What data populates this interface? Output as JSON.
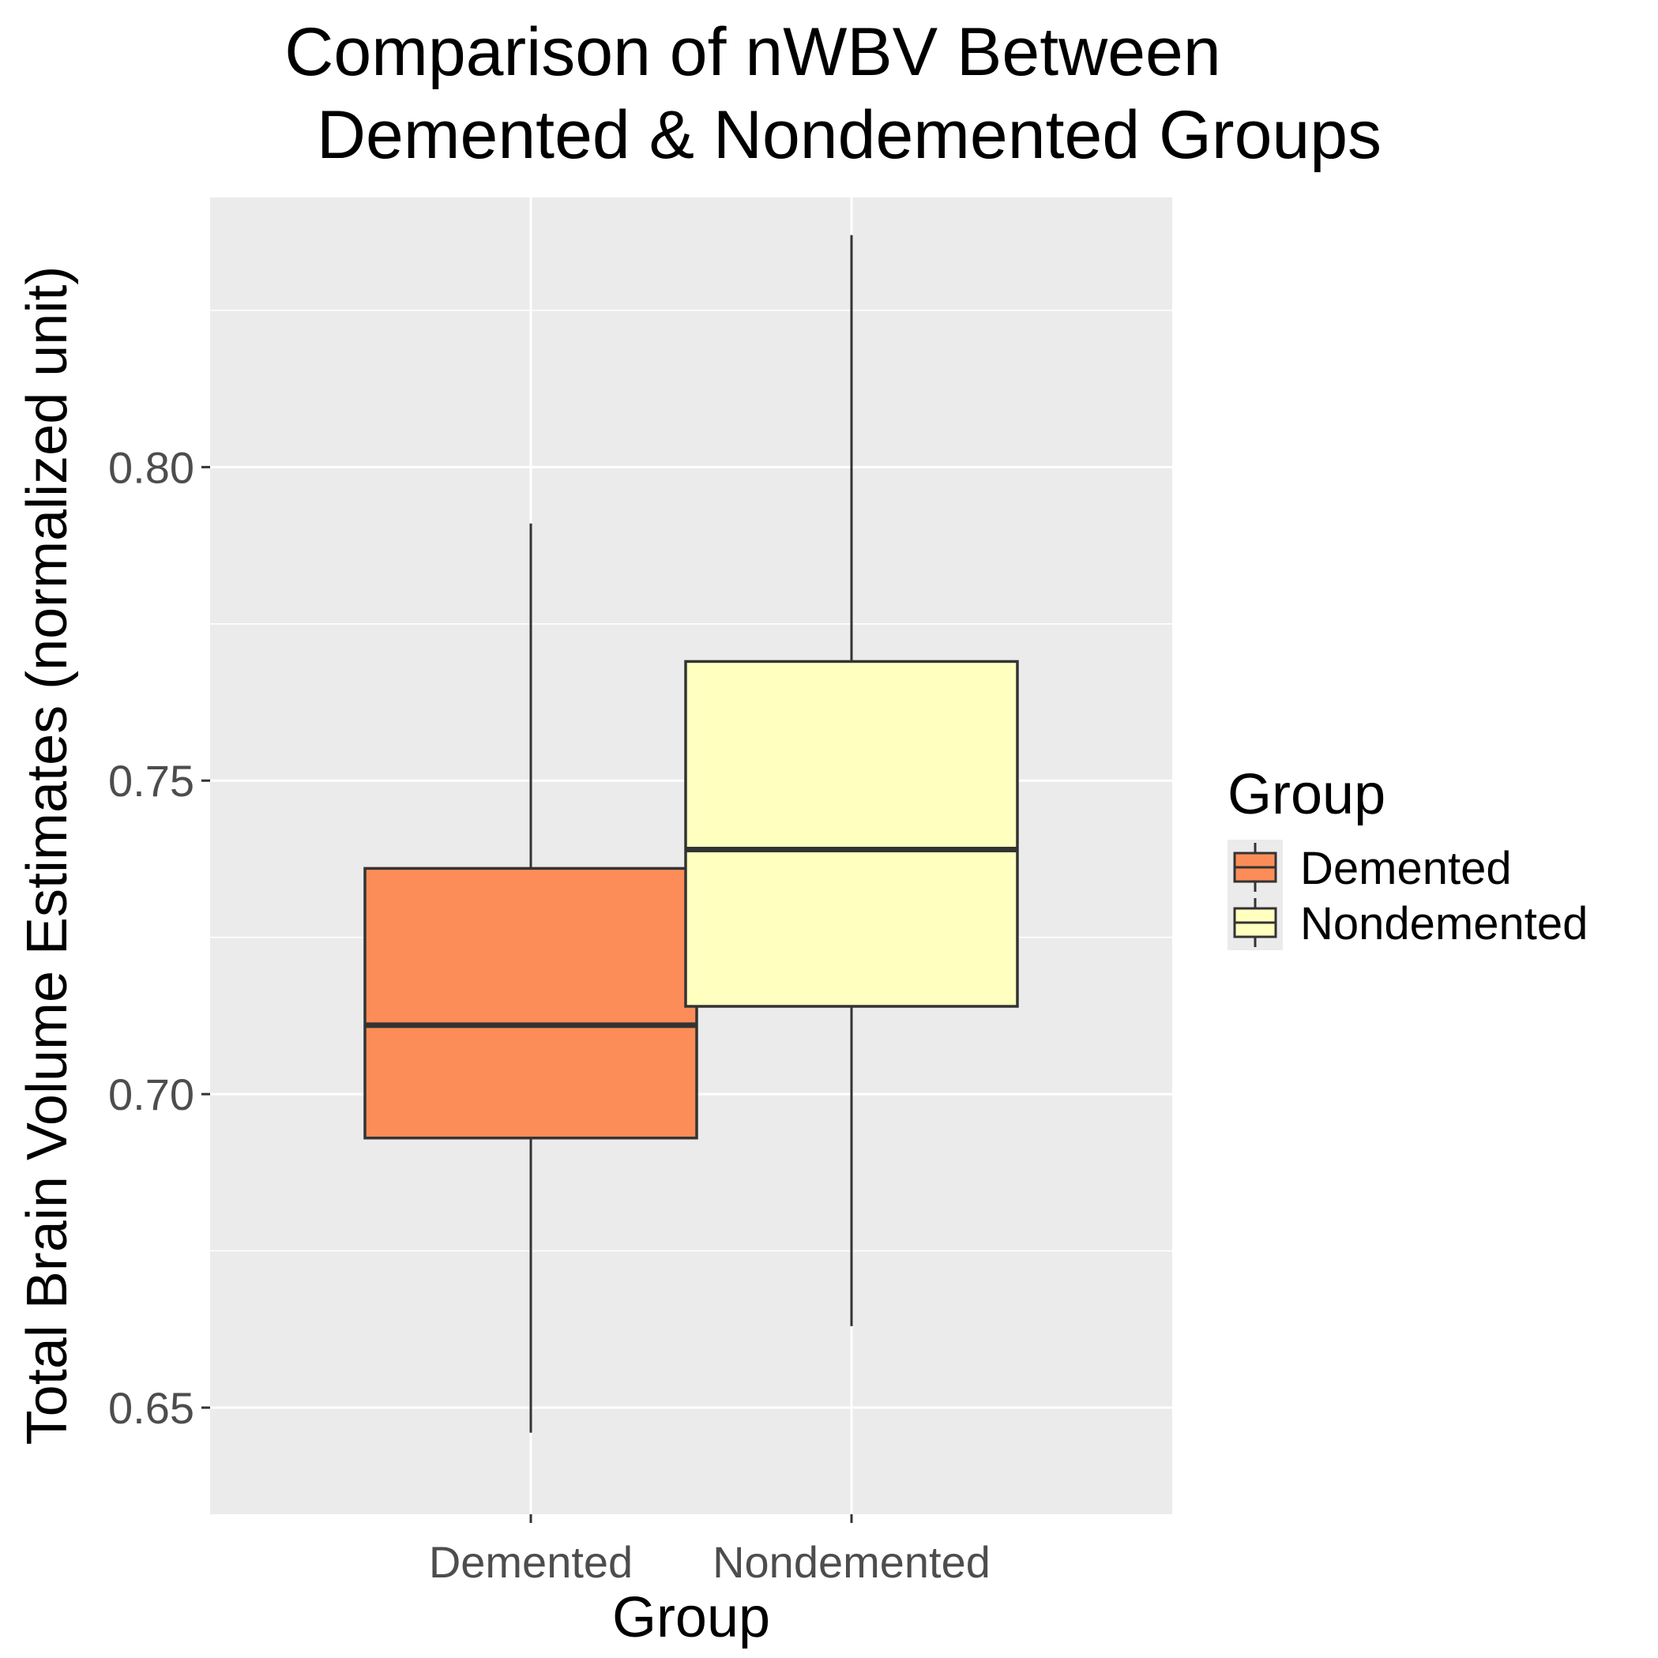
{
  "chart_data": {
    "type": "boxplot",
    "title_lines": [
      "Comparison of nWBV Between",
      "Demented & Nondemented Groups"
    ],
    "xlabel": "Group",
    "ylabel": "Total Brain Volume Estimates (normalized unit)",
    "ylim": [
      0.633,
      0.843
    ],
    "yticks": [
      0.65,
      0.7,
      0.75,
      0.8
    ],
    "ytick_labels": [
      "0.65",
      "0.70",
      "0.75",
      "0.80"
    ],
    "grid": true,
    "panel_background": "#ebebeb",
    "categories": [
      "Demented",
      "Nondemented"
    ],
    "series": [
      {
        "name": "Demented",
        "color": "#fc8d59",
        "whisker_low": 0.646,
        "q1": 0.693,
        "median": 0.711,
        "q3": 0.736,
        "whisker_high": 0.791
      },
      {
        "name": "Nondemented",
        "color": "#ffffbf",
        "whisker_low": 0.663,
        "q1": 0.714,
        "median": 0.739,
        "q3": 0.769,
        "whisker_high": 0.837
      }
    ],
    "legend": {
      "title": "Group",
      "position": "right",
      "items": [
        "Demented",
        "Nondemented"
      ]
    }
  }
}
